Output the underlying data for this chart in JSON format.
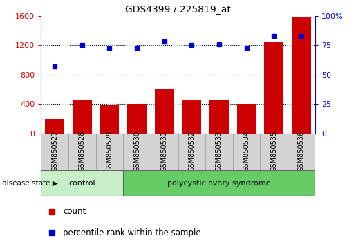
{
  "title": "GDS4399 / 225819_at",
  "categories": [
    "GSM850527",
    "GSM850528",
    "GSM850529",
    "GSM850530",
    "GSM850531",
    "GSM850532",
    "GSM850533",
    "GSM850534",
    "GSM850535",
    "GSM850536"
  ],
  "count": [
    200,
    450,
    395,
    400,
    600,
    465,
    465,
    400,
    1245,
    1580
  ],
  "percentile": [
    57,
    75,
    73,
    73,
    78,
    75,
    76,
    73,
    83,
    83
  ],
  "bar_color": "#cc0000",
  "point_color": "#0000cc",
  "left_ylim": [
    0,
    1600
  ],
  "right_ylim": [
    0,
    100
  ],
  "left_yticks": [
    0,
    400,
    800,
    1200,
    1600
  ],
  "right_yticks": [
    0,
    25,
    50,
    75,
    100
  ],
  "left_tick_labels": [
    "0",
    "400",
    "800",
    "1200",
    "1600"
  ],
  "right_tick_labels": [
    "0",
    "25",
    "50",
    "75",
    "100%"
  ],
  "grid_values": [
    400,
    800,
    1200
  ],
  "control_n": 3,
  "total_n": 10,
  "control_label": "control",
  "disease_label": "polycystic ovary syndrome",
  "disease_state_label": "disease state",
  "legend_count": "count",
  "legend_percentile": "percentile rank within the sample",
  "control_color": "#c8f0c8",
  "disease_color": "#66cc66",
  "tick_area_color": "#d3d3d3",
  "tick_border_color": "#999999"
}
